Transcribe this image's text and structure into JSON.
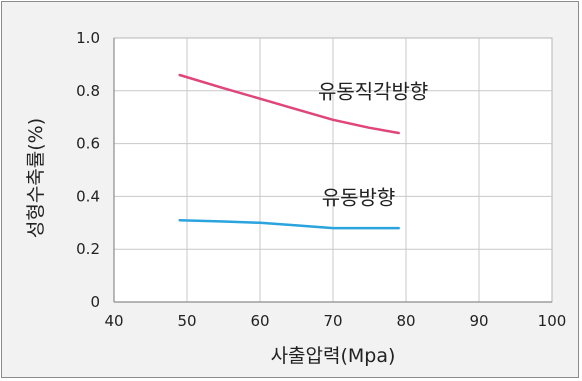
{
  "chart_data": {
    "type": "line",
    "title": "",
    "xlabel": "사출압력(Mpa)",
    "ylabel": "성형수축률(%)",
    "xlim": [
      40,
      100
    ],
    "ylim": [
      0,
      1.0
    ],
    "x_ticks": [
      "40",
      "50",
      "60",
      "70",
      "80",
      "90",
      "100"
    ],
    "y_ticks": [
      "0",
      "0.2",
      "0.4",
      "0.6",
      "0.8",
      "1.0"
    ],
    "grid": true,
    "legend": "inline-labels",
    "series": [
      {
        "name": "유동직각방향",
        "color": "#e0457b",
        "x": [
          49,
          55,
          60,
          65,
          70,
          75,
          79
        ],
        "y": [
          0.86,
          0.81,
          0.77,
          0.73,
          0.69,
          0.66,
          0.64
        ]
      },
      {
        "name": "유동방향",
        "color": "#2aa3df",
        "x": [
          49,
          55,
          60,
          65,
          70,
          75,
          79
        ],
        "y": [
          0.31,
          0.305,
          0.3,
          0.29,
          0.28,
          0.28,
          0.28
        ]
      }
    ]
  }
}
